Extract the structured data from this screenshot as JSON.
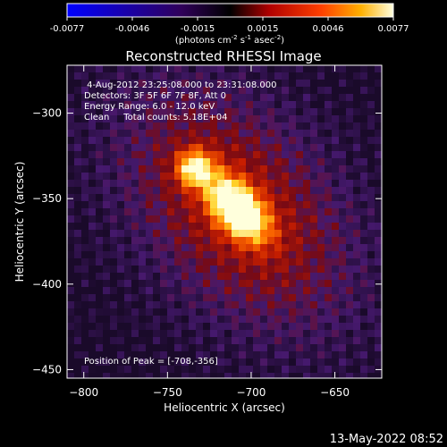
{
  "chart_data": {
    "type": "heatmap",
    "title": "Reconstructed RHESSI Image",
    "xlabel": "Heliocentric X (arcsec)",
    "ylabel": "Heliocentric Y (arcsec)",
    "x_range": [
      -810,
      -622
    ],
    "y_range": [
      -455,
      -272
    ],
    "x_ticks": [
      -800,
      -750,
      -700,
      -650
    ],
    "y_ticks": [
      -300,
      -350,
      -400,
      -450
    ],
    "colorbar": {
      "range": [
        -0.0077,
        0.0077
      ],
      "ticks": [
        "-0.0077",
        "-0.0046",
        "-0.0015",
        "0.0015",
        "0.0046",
        "0.0077"
      ],
      "units_html": "(photons cm<tspan baseline-shift='super' font-size='7'>-2</tspan> s<tspan baseline-shift='super' font-size='7'>-1</tspan> asec<tspan baseline-shift='super' font-size='7'>-2</tspan>)"
    },
    "info_lines": [
      "4-Aug-2012 23:25:08.000 to 23:31:08.000",
      "Detectors: 3F 5F 6F 7F 8F, Att 0",
      "Energy Range: 6.0 - 12.0 keV",
      "Clean     Total counts: 5.18E+04"
    ],
    "peak_label": "Position of Peak = [-708,-356]",
    "peak": [
      -708,
      -356
    ]
  },
  "footer": {
    "timestamp": "13-May-2022 08:52"
  },
  "colors": {
    "background": "#000000",
    "text": "#ffffff"
  }
}
